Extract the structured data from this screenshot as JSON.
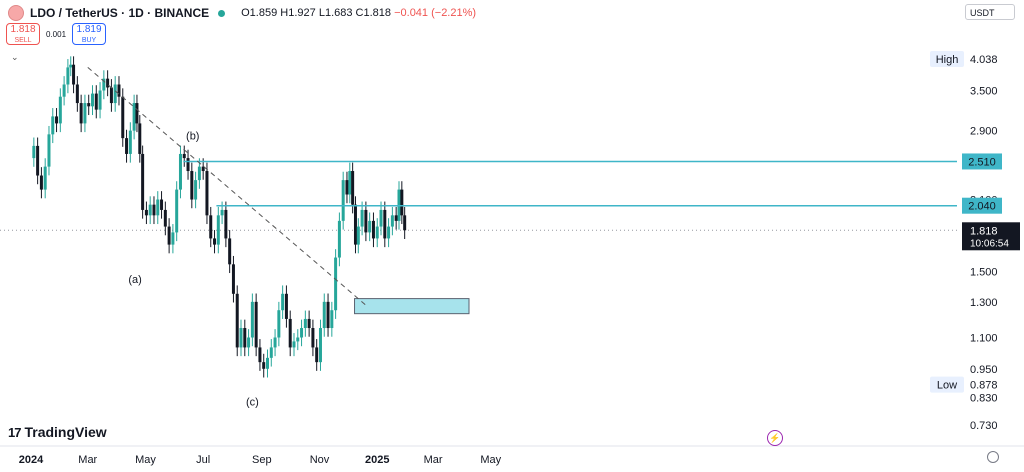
{
  "header": {
    "symbol": "LDO / TetherUS · 1D · BINANCE",
    "open": "O1.859",
    "high": "H1.927",
    "low": "L1.683",
    "close": "C1.818",
    "change": "−0.041 (−2.21%)"
  },
  "trade": {
    "sell_price": "1.818",
    "sell_label": "SELL",
    "spread": "0.001",
    "buy_price": "1.819",
    "buy_label": "BUY"
  },
  "currency": "USDT",
  "logo_text": "TradingView",
  "colors": {
    "up": "#26a69a",
    "down": "#131722",
    "level": "#3fb6c8",
    "zone": "#a7e3ec"
  },
  "chart_data": {
    "type": "candlestick",
    "x_ticks": [
      "2024",
      "Mar",
      "May",
      "Jul",
      "Sep",
      "Nov",
      "2025",
      "Mar",
      "May"
    ],
    "y_ticks": [
      3.5,
      2.9,
      2.1,
      1.5,
      1.3,
      1.1,
      0.95,
      0.83,
      0.73
    ],
    "y_tick_labels": [
      "3.500",
      "2.900",
      "2.100",
      "1.500",
      "1.300",
      "1.100",
      "0.950",
      "0.830",
      "0.730"
    ],
    "ylim": [
      0.7,
      4.3
    ],
    "y_scale": "log",
    "stats": {
      "high_label": "High",
      "high_value": "4.038",
      "low_label": "Low",
      "low_value": "0.878"
    },
    "current_price": {
      "value": "1.818",
      "countdown": "10:06:54"
    },
    "levels": [
      {
        "value": 2.51,
        "label": "2.510"
      },
      {
        "value": 2.04,
        "label": "2.040"
      }
    ],
    "zone": {
      "from": 1.23,
      "to": 1.32,
      "start": "2024-12-08",
      "end": "2025-04-08"
    },
    "trendline": [
      {
        "date": "2024-03-01",
        "value": 3.9
      },
      {
        "date": "2024-12-20",
        "value": 1.28
      }
    ],
    "annotations": [
      {
        "text": "(a)",
        "date": "2024-04-20",
        "value": 1.42
      },
      {
        "text": "(b)",
        "date": "2024-06-20",
        "value": 2.78
      },
      {
        "text": "(c)",
        "date": "2024-08-22",
        "value": 0.8
      }
    ],
    "candles": [
      [
        "2024-01-01",
        2.55
      ],
      [
        "2024-01-04",
        2.7
      ],
      [
        "2024-01-08",
        2.35
      ],
      [
        "2024-01-12",
        2.2
      ],
      [
        "2024-01-16",
        2.45
      ],
      [
        "2024-01-20",
        2.85
      ],
      [
        "2024-01-24",
        3.1
      ],
      [
        "2024-01-28",
        3.0
      ],
      [
        "2024-02-01",
        3.4
      ],
      [
        "2024-02-05",
        3.6
      ],
      [
        "2024-02-09",
        3.9
      ],
      [
        "2024-02-12",
        3.95
      ],
      [
        "2024-02-15",
        3.6
      ],
      [
        "2024-02-19",
        3.3
      ],
      [
        "2024-02-23",
        3.0
      ],
      [
        "2024-02-27",
        3.3
      ],
      [
        "2024-03-02",
        3.25
      ],
      [
        "2024-03-06",
        3.45
      ],
      [
        "2024-03-10",
        3.2
      ],
      [
        "2024-03-14",
        3.5
      ],
      [
        "2024-03-18",
        3.7
      ],
      [
        "2024-03-22",
        3.55
      ],
      [
        "2024-03-26",
        3.3
      ],
      [
        "2024-03-30",
        3.6
      ],
      [
        "2024-04-03",
        3.4
      ],
      [
        "2024-04-07",
        2.8
      ],
      [
        "2024-04-11",
        2.6
      ],
      [
        "2024-04-15",
        2.9
      ],
      [
        "2024-04-19",
        3.3
      ],
      [
        "2024-04-22",
        3.0
      ],
      [
        "2024-04-25",
        2.6
      ],
      [
        "2024-04-28",
        2.0
      ],
      [
        "2024-05-02",
        1.95
      ],
      [
        "2024-05-06",
        2.05
      ],
      [
        "2024-05-10",
        1.95
      ],
      [
        "2024-05-14",
        2.1
      ],
      [
        "2024-05-18",
        2.0
      ],
      [
        "2024-05-22",
        1.85
      ],
      [
        "2024-05-26",
        1.7
      ],
      [
        "2024-05-30",
        1.8
      ],
      [
        "2024-06-03",
        2.2
      ],
      [
        "2024-06-07",
        2.6
      ],
      [
        "2024-06-11",
        2.55
      ],
      [
        "2024-06-15",
        2.4
      ],
      [
        "2024-06-19",
        2.1
      ],
      [
        "2024-06-23",
        2.3
      ],
      [
        "2024-06-27",
        2.45
      ],
      [
        "2024-07-01",
        2.4
      ],
      [
        "2024-07-05",
        1.95
      ],
      [
        "2024-07-09",
        1.75
      ],
      [
        "2024-07-13",
        1.7
      ],
      [
        "2024-07-17",
        1.95
      ],
      [
        "2024-07-21",
        2.0
      ],
      [
        "2024-07-25",
        1.75
      ],
      [
        "2024-07-29",
        1.55
      ],
      [
        "2024-08-02",
        1.35
      ],
      [
        "2024-08-06",
        1.05
      ],
      [
        "2024-08-10",
        1.15
      ],
      [
        "2024-08-14",
        1.05
      ],
      [
        "2024-08-18",
        1.1
      ],
      [
        "2024-08-22",
        1.3
      ],
      [
        "2024-08-26",
        1.05
      ],
      [
        "2024-08-30",
        0.98
      ],
      [
        "2024-09-03",
        0.95
      ],
      [
        "2024-09-07",
        1.0
      ],
      [
        "2024-09-11",
        1.05
      ],
      [
        "2024-09-15",
        1.1
      ],
      [
        "2024-09-19",
        1.25
      ],
      [
        "2024-09-23",
        1.35
      ],
      [
        "2024-09-27",
        1.2
      ],
      [
        "2024-10-01",
        1.05
      ],
      [
        "2024-10-05",
        1.08
      ],
      [
        "2024-10-09",
        1.1
      ],
      [
        "2024-10-13",
        1.15
      ],
      [
        "2024-10-17",
        1.2
      ],
      [
        "2024-10-21",
        1.15
      ],
      [
        "2024-10-25",
        1.05
      ],
      [
        "2024-10-29",
        0.98
      ],
      [
        "2024-11-02",
        1.15
      ],
      [
        "2024-11-06",
        1.3
      ],
      [
        "2024-11-10",
        1.15
      ],
      [
        "2024-11-14",
        1.25
      ],
      [
        "2024-11-18",
        1.6
      ],
      [
        "2024-11-22",
        1.9
      ],
      [
        "2024-11-26",
        2.3
      ],
      [
        "2024-11-30",
        2.15
      ],
      [
        "2024-12-03",
        2.4
      ],
      [
        "2024-12-06",
        2.05
      ],
      [
        "2024-12-09",
        1.7
      ],
      [
        "2024-12-12",
        1.85
      ],
      [
        "2024-12-16",
        2.0
      ],
      [
        "2024-12-20",
        1.8
      ],
      [
        "2024-12-24",
        1.9
      ],
      [
        "2024-12-28",
        1.75
      ],
      [
        "2025-01-01",
        1.85
      ],
      [
        "2025-01-05",
        2.0
      ],
      [
        "2025-01-09",
        1.75
      ],
      [
        "2025-01-13",
        1.85
      ],
      [
        "2025-01-17",
        1.95
      ],
      [
        "2025-01-21",
        1.9
      ],
      [
        "2025-01-24",
        2.2
      ],
      [
        "2025-01-27",
        1.95
      ],
      [
        "2025-01-30",
        1.818
      ]
    ]
  }
}
